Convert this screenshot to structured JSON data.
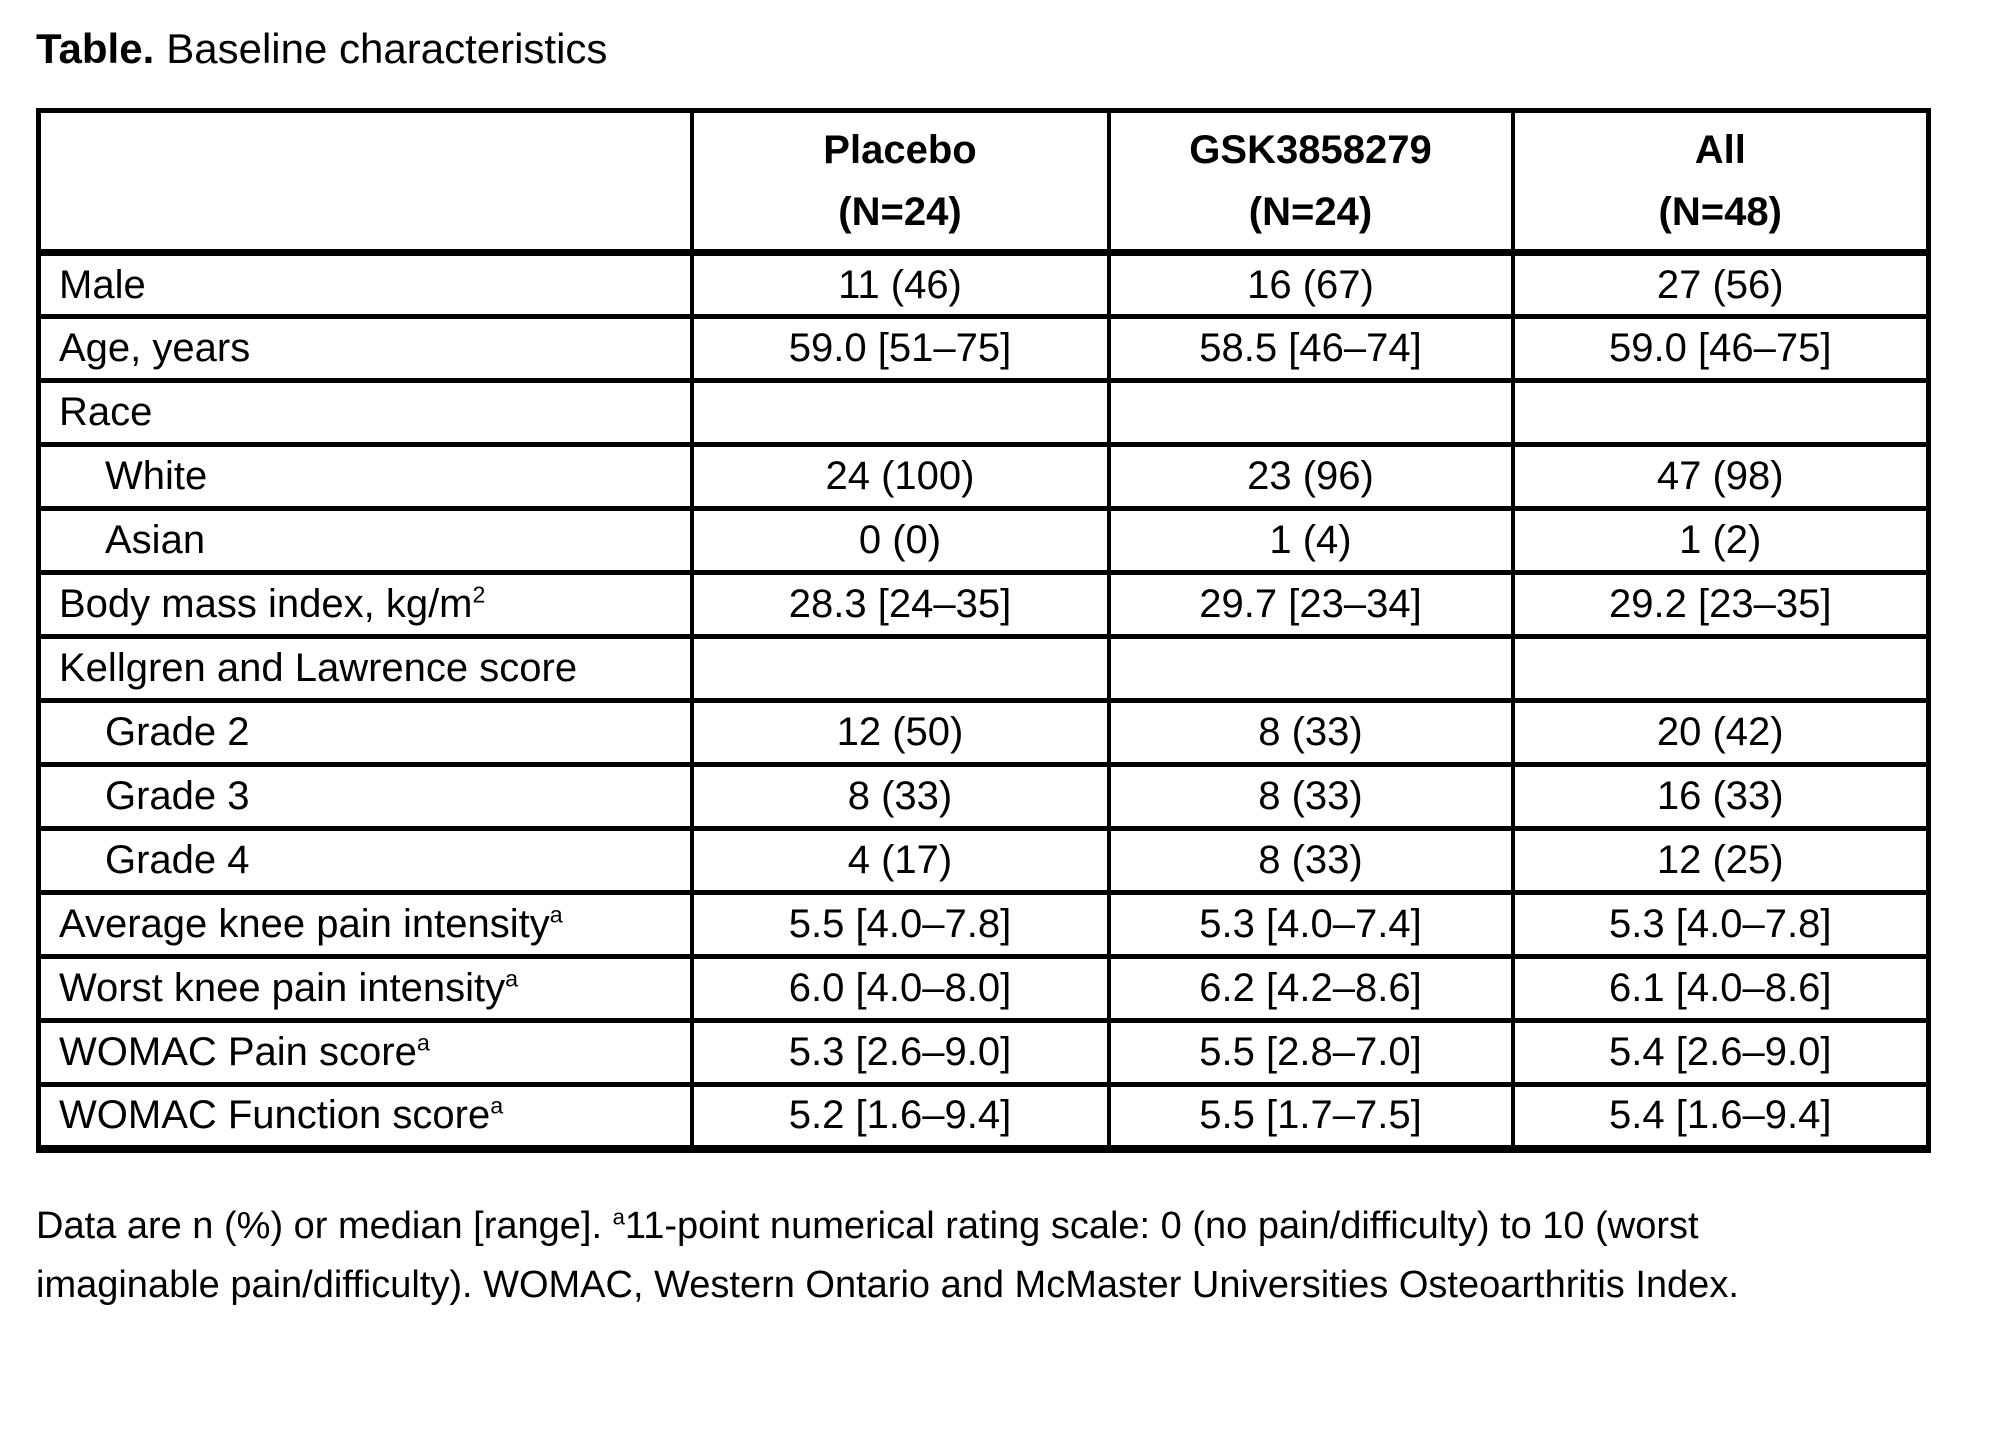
{
  "title": {
    "bold": "Table.",
    "rest": "Baseline characteristics"
  },
  "table": {
    "header": {
      "cols": [
        {
          "line1": "Placebo",
          "line2": "(N=24)"
        },
        {
          "line1": "GSK3858279",
          "line2": "(N=24)"
        },
        {
          "line1": "All",
          "line2": "(N=48)"
        }
      ]
    },
    "rows": [
      {
        "label": "Male",
        "sup": "",
        "values": [
          "11 (46)",
          "16 (67)",
          "27 (56)"
        ]
      },
      {
        "label": "Age, years",
        "sup": "",
        "values": [
          "59.0 [51–75]",
          "58.5 [46–74]",
          "59.0 [46–75]"
        ]
      },
      {
        "label": "Race",
        "sup": "",
        "values": [
          "",
          "",
          ""
        ]
      },
      {
        "label": "White",
        "sup": "",
        "values": [
          "24 (100)",
          "23 (96)",
          "47 (98)"
        ]
      },
      {
        "label": "Asian",
        "sup": "",
        "values": [
          "0 (0)",
          "1 (4)",
          "1 (2)"
        ]
      },
      {
        "label": "Body mass index, kg/m",
        "sup": "2",
        "values": [
          "28.3 [24–35]",
          "29.7 [23–34]",
          "29.2 [23–35]"
        ]
      },
      {
        "label": "Kellgren and Lawrence score",
        "sup": "",
        "values": [
          "",
          "",
          ""
        ]
      },
      {
        "label": "Grade 2",
        "sup": "",
        "values": [
          "12 (50)",
          "8 (33)",
          "20 (42)"
        ]
      },
      {
        "label": "Grade 3",
        "sup": "",
        "values": [
          "8 (33)",
          "8 (33)",
          "16 (33)"
        ]
      },
      {
        "label": "Grade 4",
        "sup": "",
        "values": [
          "4 (17)",
          "8 (33)",
          "12 (25)"
        ]
      },
      {
        "label": "Average knee pain intensity",
        "sup": "a",
        "values": [
          "5.5 [4.0–7.8]",
          "5.3 [4.0–7.4]",
          "5.3 [4.0–7.8]"
        ]
      },
      {
        "label": "Worst knee pain intensity",
        "sup": "a",
        "values": [
          "6.0 [4.0–8.0]",
          "6.2 [4.2–8.6]",
          "6.1 [4.0–8.6]"
        ]
      },
      {
        "label": "WOMAC Pain score",
        "sup": "a",
        "values": [
          "5.3 [2.6–9.0]",
          "5.5 [2.8–7.0]",
          "5.4 [2.6–9.0]"
        ]
      },
      {
        "label": "WOMAC Function score",
        "sup": "a",
        "values": [
          "5.2 [1.6–9.4]",
          "5.5 [1.7–7.5]",
          "5.4 [1.6–9.4]"
        ]
      }
    ]
  },
  "footnote": {
    "line1_pre": "Data are n (%) or median [range]. ",
    "line1_sup": "a",
    "line1_post": "11-point numerical rating scale: 0 (no pain/difficulty) to 10 (worst",
    "line2": "imaginable pain/difficulty). WOMAC, Western Ontario and McMaster Universities Osteoarthritis Index."
  }
}
